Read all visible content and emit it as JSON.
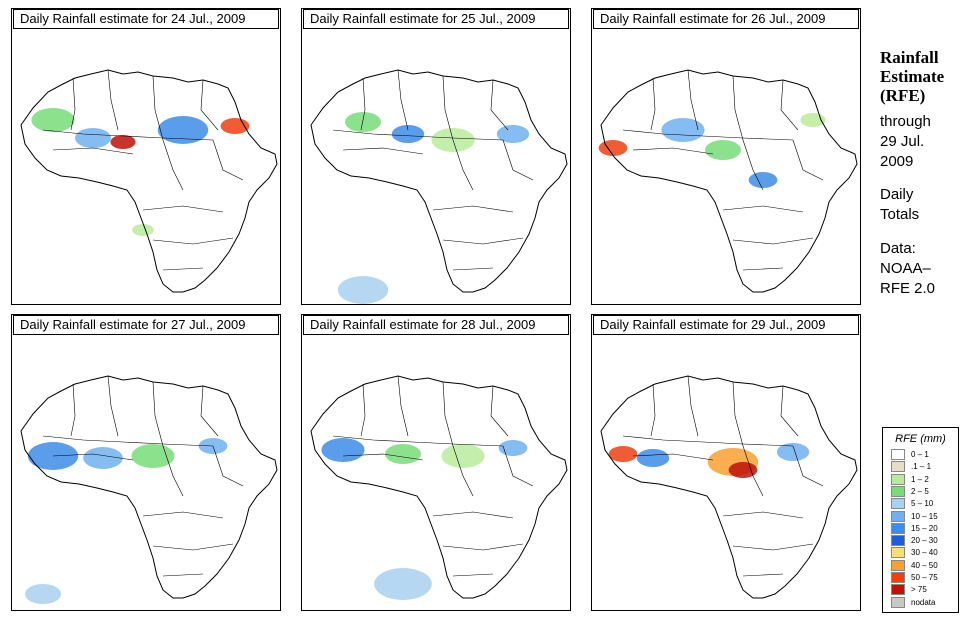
{
  "panels": [
    {
      "title": "Daily Rainfall estimate for  24 Jul., 2009"
    },
    {
      "title": "Daily Rainfall estimate for  25 Jul., 2009"
    },
    {
      "title": "Daily Rainfall estimate for  26 Jul., 2009"
    },
    {
      "title": "Daily Rainfall estimate for  27 Jul., 2009"
    },
    {
      "title": "Daily Rainfall estimate for  28 Jul., 2009"
    },
    {
      "title": "Daily Rainfall estimate for  29 Jul., 2009"
    }
  ],
  "sidebar": {
    "title_line1": "Rainfall",
    "title_line2": "Estimate",
    "title_line3": "(RFE)",
    "through": "through",
    "end_date_line1": "29 Jul.",
    "end_date_line2": "2009",
    "daily_line1": "Daily",
    "daily_line2": "Totals",
    "data_line1": "Data:",
    "data_line2": "NOAA–",
    "data_line3": "RFE 2.0"
  },
  "legend": {
    "title": "RFE (mm)",
    "items": [
      {
        "label": "0 – 1",
        "color": "#ffffff"
      },
      {
        "label": ".1 – 1",
        "color": "#e8dcc6"
      },
      {
        "label": "1 – 2",
        "color": "#b8ec9c"
      },
      {
        "label": "2 – 5",
        "color": "#78dc78"
      },
      {
        "label": "5 – 10",
        "color": "#a8d0f0"
      },
      {
        "label": "10 – 15",
        "color": "#70b0f0"
      },
      {
        "label": "15 – 20",
        "color": "#3c8ce8"
      },
      {
        "label": "20 – 30",
        "color": "#1e5cd8"
      },
      {
        "label": "30 – 40",
        "color": "#f8e070"
      },
      {
        "label": "40 – 50",
        "color": "#f8a030"
      },
      {
        "label": "50 – 75",
        "color": "#f04010"
      },
      {
        "label": "> 75",
        "color": "#c01008"
      },
      {
        "label": "nodata",
        "color": "#c8c8c8"
      }
    ]
  }
}
